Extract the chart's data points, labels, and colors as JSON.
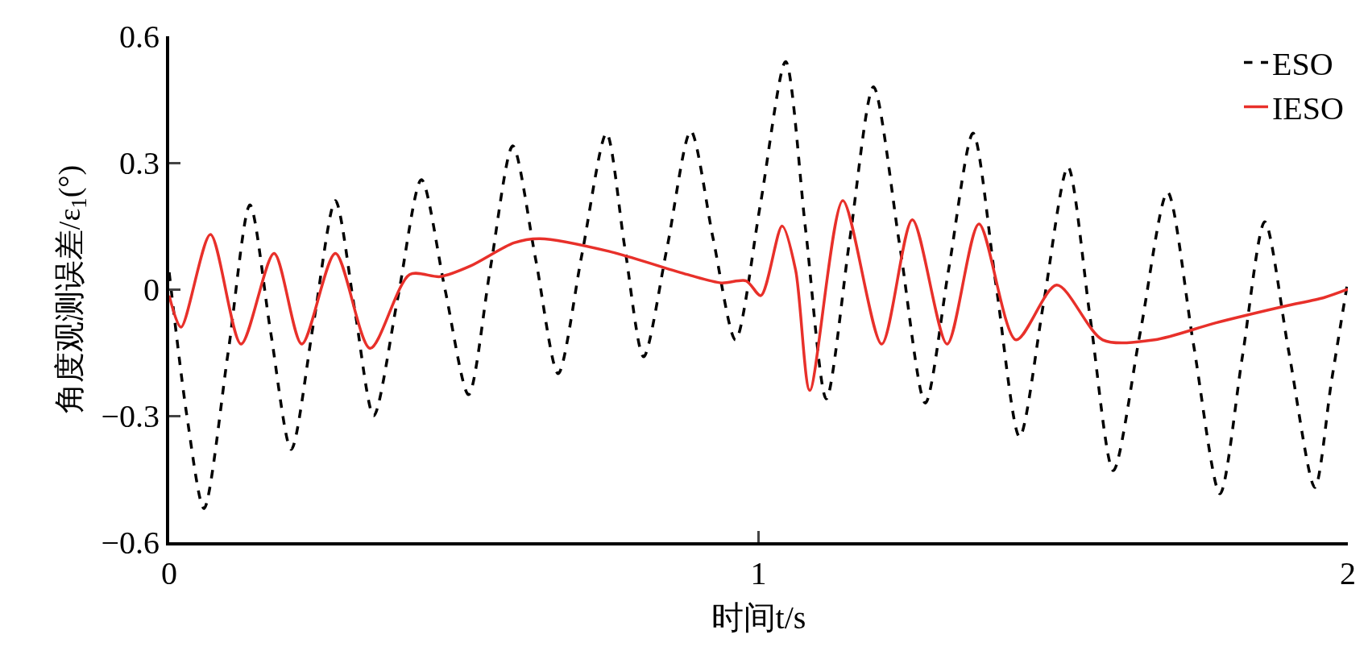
{
  "chart_data": {
    "type": "line",
    "xlabel": "时间t/s",
    "ylabel": "角度观测误差/ε$_{1}$(°)",
    "xlim": [
      0,
      2
    ],
    "xticks": [
      0,
      1,
      2
    ],
    "ylim": [
      -0.6,
      0.6
    ],
    "yticks": [
      {
        "value": -0.6,
        "label": "−0.6"
      },
      {
        "value": -0.3,
        "label": "−0.3"
      },
      0,
      0.3,
      0.6
    ],
    "grid": false,
    "legend": "top right",
    "marker": "none",
    "series": [
      {
        "name": "ESO",
        "color": "#000000",
        "line_style": "dashed",
        "x": [
          0,
          0.03,
          0.059,
          0.1,
          0.137,
          0.172,
          0.207,
          0.245,
          0.282,
          0.315,
          0.347,
          0.388,
          0.428,
          0.468,
          0.508,
          0.545,
          0.583,
          0.622,
          0.66,
          0.7,
          0.742,
          0.773,
          0.805,
          0.845,
          0.885,
          0.923,
          0.961,
          1.003,
          1.046,
          1.08,
          1.115,
          1.155,
          1.195,
          1.24,
          1.283,
          1.323,
          1.364,
          1.403,
          1.443,
          1.484,
          1.525,
          1.563,
          1.602,
          1.648,
          1.694,
          1.738,
          1.783,
          1.821,
          1.859,
          1.9,
          1.944,
          1.972,
          2.0
        ],
        "values": [
          0.04,
          -0.3,
          -0.52,
          -0.15,
          0.2,
          -0.1,
          -0.38,
          -0.08,
          0.21,
          -0.05,
          -0.3,
          -0.02,
          0.26,
          0,
          -0.25,
          0.05,
          0.34,
          0.07,
          -0.2,
          0.08,
          0.37,
          0.1,
          -0.16,
          0.1,
          0.375,
          0.12,
          -0.12,
          0.2,
          0.54,
          0.14,
          -0.26,
          0.12,
          0.48,
          0.1,
          -0.27,
          0.05,
          0.37,
          0.01,
          -0.35,
          -0.03,
          0.29,
          -0.07,
          -0.43,
          -0.1,
          0.23,
          -0.13,
          -0.485,
          -0.16,
          0.16,
          -0.15,
          -0.47,
          -0.22,
          0.02
        ]
      },
      {
        "name": "IESO",
        "color": "#e8302a",
        "line_style": "solid",
        "x": [
          0,
          0.02,
          0.07,
          0.122,
          0.178,
          0.225,
          0.282,
          0.341,
          0.408,
          0.46,
          0.511,
          0.585,
          0.629,
          0.746,
          0.879,
          0.937,
          0.979,
          1.004,
          1.04,
          1.063,
          1.087,
          1.143,
          1.209,
          1.261,
          1.32,
          1.374,
          1.437,
          1.506,
          1.584,
          1.672,
          1.775,
          1.893,
          1.959,
          2.0
        ],
        "values": [
          -0.015,
          -0.09,
          0.13,
          -0.13,
          0.085,
          -0.13,
          0.085,
          -0.14,
          0.035,
          0.03,
          0.055,
          0.11,
          0.12,
          0.09,
          0.035,
          0.015,
          0.02,
          -0.015,
          0.15,
          0.045,
          -0.24,
          0.21,
          -0.13,
          0.165,
          -0.13,
          0.155,
          -0.12,
          0.01,
          -0.12,
          -0.12,
          -0.08,
          -0.04,
          -0.02,
          0
        ]
      }
    ]
  }
}
